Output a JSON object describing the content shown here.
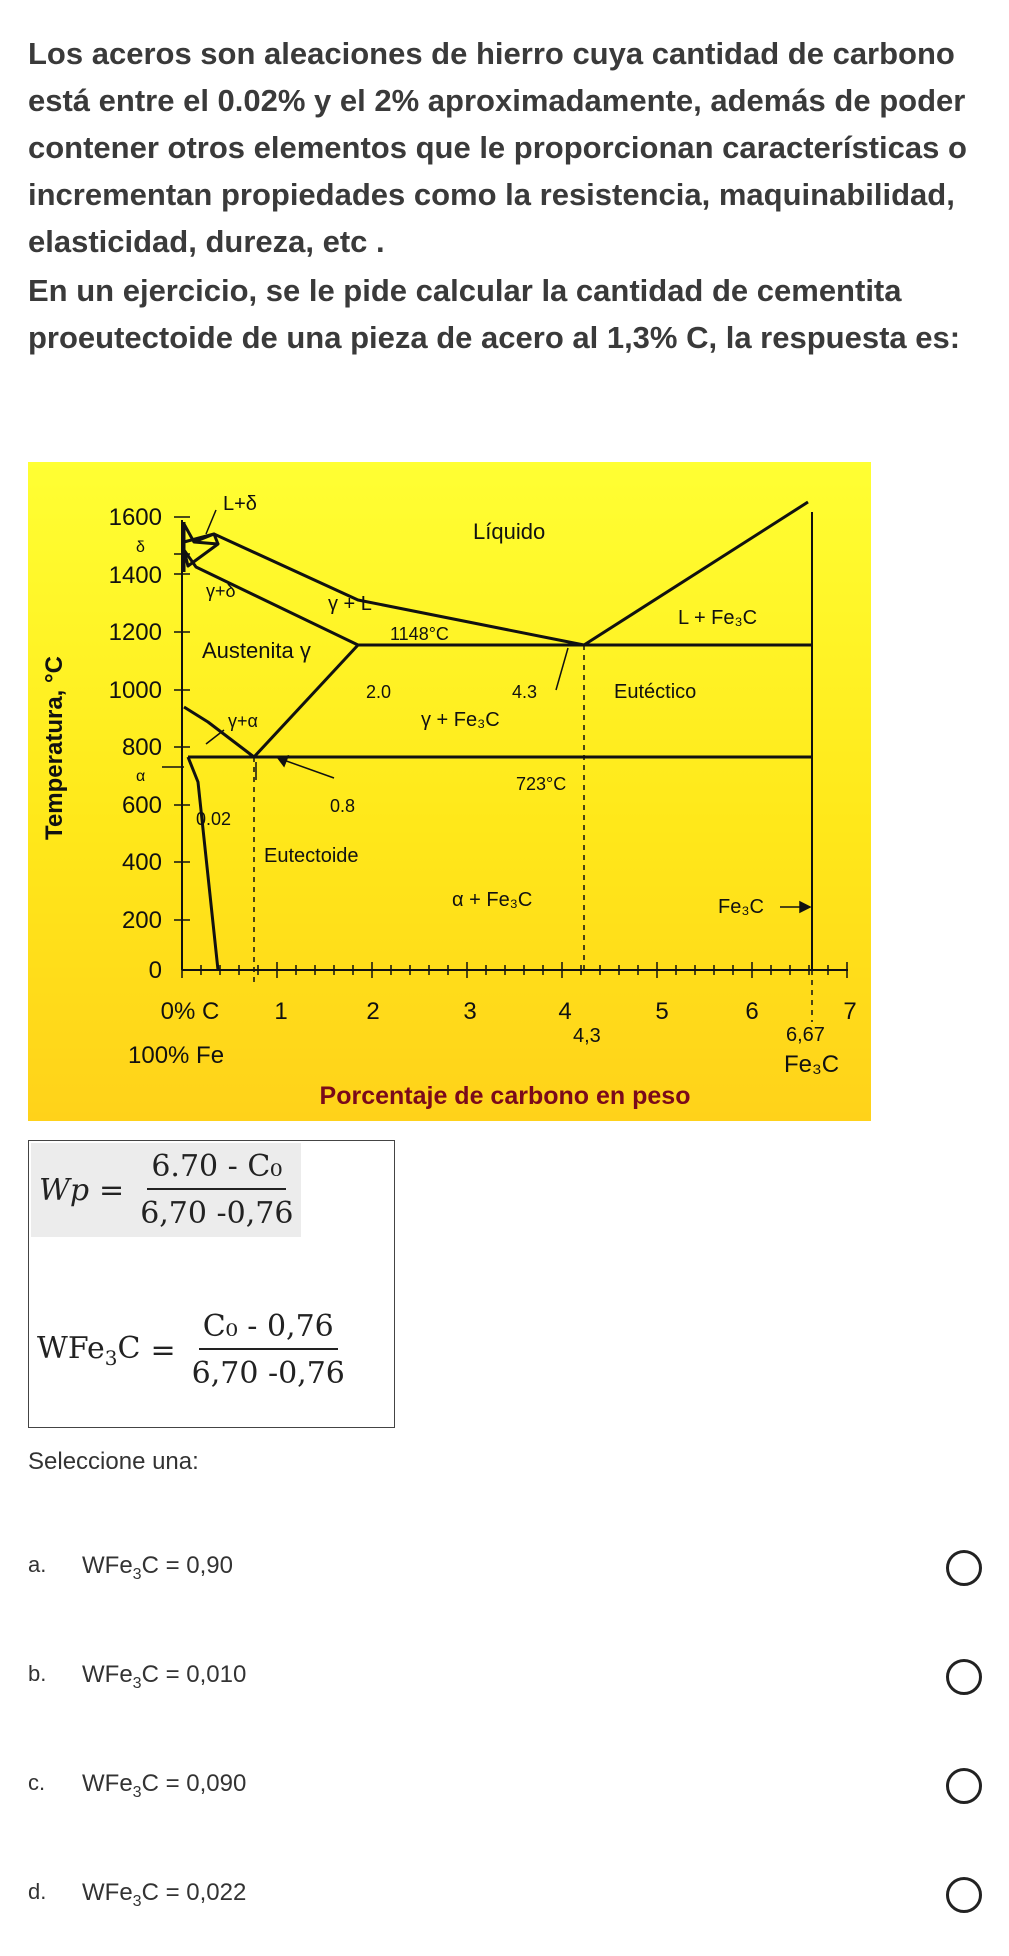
{
  "question": {
    "paragraph1": "Los aceros son aleaciones de hierro cuya cantidad de carbono está entre el 0.02% y el 2% aproximadamente, además de poder contener otros elementos que le proporcionan características o incrementan propiedades como la resistencia, maquinabilidad, elasticidad, dureza, etc .",
    "paragraph2": "En un ejercicio, se le pide calcular la cantidad de cementita proeutectoide de una pieza de acero al 1,3% C, la respuesta es:"
  },
  "diagram": {
    "y_axis_label": "Temperatura, °C",
    "y_ticks": [
      "1600",
      "1400",
      "1200",
      "1000",
      "800",
      "600",
      "400",
      "200",
      "0"
    ],
    "x_ticks": [
      "0% C",
      "1",
      "2",
      "3",
      "4",
      "5",
      "6",
      "7"
    ],
    "x_sublabel_fe": "100% Fe",
    "x_axis_label": "Porcentaje de carbono en peso",
    "labels": {
      "l_delta": "L+δ",
      "delta": "δ",
      "gamma_delta": "γ+δ",
      "liquido": "Líquido",
      "gamma_l": "γ + L",
      "t1148": "1148°C",
      "l_fe3c": "L + Fe₃C",
      "austenita": "Austenita γ",
      "v20": "2.0",
      "v43": "4.3",
      "eutectico": "Eutéctico",
      "gamma_alpha": "γ+α",
      "gamma_fe3c": "γ + Fe₃C",
      "alpha": "α",
      "t723": "723°C",
      "v08": "0.8",
      "v002": "0.02",
      "eutectoide": "Eutectoide",
      "alpha_fe3c": "α + Fe₃C",
      "fe3c_arrow": "Fe₃C",
      "v43b": "4,3",
      "v667": "6,67",
      "fe3c_bottom": "Fe₃C"
    }
  },
  "formulas": {
    "f1_lhs": "Wp",
    "f1_num": "6.70 - C₀",
    "f1_den": "6,70 -0,76",
    "f2_lhs_a": "WFe",
    "f2_lhs_sub": "3",
    "f2_lhs_b": "C",
    "f2_num": "C₀ - 0,76",
    "f2_den": "6,70 -0,76"
  },
  "select_label": "Seleccione una:",
  "options": [
    {
      "letter": "a.",
      "pre": "WFe",
      "sub": "3",
      "post": "C = 0,90"
    },
    {
      "letter": "b.",
      "pre": "WFe",
      "sub": "3",
      "post": "C = 0,010"
    },
    {
      "letter": "c.",
      "pre": "WFe",
      "sub": "3",
      "post": "C = 0,090"
    },
    {
      "letter": "d.",
      "pre": "WFe",
      "sub": "3",
      "post": "C = 0,022"
    }
  ]
}
